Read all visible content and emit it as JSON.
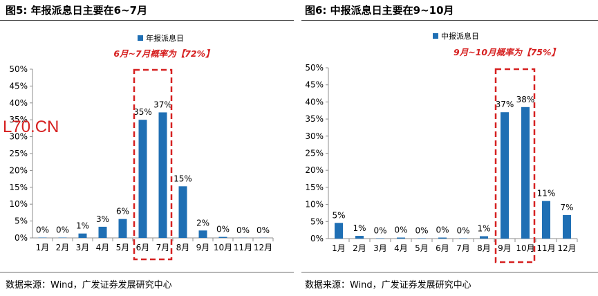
{
  "panels": [
    {
      "title": "图5:  年报派息日主要在6~7月",
      "source": "数据来源：Wind，广发证券发展研究中心"
    },
    {
      "title": "图6:  中报派息日主要在9~10月",
      "source": "数据来源：Wind，广发证券发展研究中心"
    }
  ],
  "watermark": "L70.CN",
  "chart_data": [
    {
      "type": "bar",
      "categories": [
        "1月",
        "2月",
        "3月",
        "4月",
        "5月",
        "6月",
        "7月",
        "8月",
        "9月",
        "10月",
        "11月",
        "12月"
      ],
      "series": [
        {
          "name": "年报派息日",
          "values": [
            0,
            0,
            1,
            3,
            6,
            35,
            37,
            15,
            2,
            0,
            0,
            0
          ],
          "display_values": [
            0.1,
            0.1,
            1.3,
            3.3,
            5.6,
            35,
            37.2,
            15.3,
            2.2,
            0.3,
            0.05,
            0.05
          ]
        }
      ],
      "data_labels": [
        "0%",
        "0%",
        "1%",
        "3%",
        "6%",
        "35%",
        "37%",
        "15%",
        "2%",
        "0%",
        "0%",
        "0%"
      ],
      "yticks": [
        "0%",
        "5%",
        "10%",
        "15%",
        "20%",
        "25%",
        "30%",
        "35%",
        "40%",
        "45%",
        "50%"
      ],
      "ylim": [
        0,
        50
      ],
      "highlight": {
        "from": "6月",
        "to": "7月",
        "label": "6月~7月概率为【72%】"
      },
      "legend_position": "top-center",
      "color": "#1f6fb4",
      "highlight_color": "#d62020"
    },
    {
      "type": "bar",
      "categories": [
        "1月",
        "2月",
        "3月",
        "4月",
        "5月",
        "6月",
        "7月",
        "8月",
        "9月",
        "10月",
        "11月",
        "12月"
      ],
      "series": [
        {
          "name": "中报派息日",
          "values": [
            5,
            1,
            0,
            0,
            0,
            0,
            0,
            1,
            37,
            38,
            11,
            7
          ],
          "display_values": [
            4.6,
            0.8,
            0.1,
            0.3,
            0.1,
            0.3,
            0.1,
            0.7,
            37,
            38.5,
            11,
            6.9
          ]
        }
      ],
      "data_labels": [
        "5%",
        "1%",
        "0%",
        "0%",
        "0%",
        "0%",
        "0%",
        "1%",
        "37%",
        "38%",
        "11%",
        "7%"
      ],
      "yticks": [
        "0%",
        "5%",
        "10%",
        "15%",
        "20%",
        "25%",
        "30%",
        "35%",
        "40%",
        "45%",
        "50%"
      ],
      "ylim": [
        0,
        50
      ],
      "highlight": {
        "from": "9月",
        "to": "10月",
        "label": "9月~10月概率为【75%】"
      },
      "legend_position": "top-center",
      "color": "#1f6fb4",
      "highlight_color": "#d62020"
    }
  ]
}
